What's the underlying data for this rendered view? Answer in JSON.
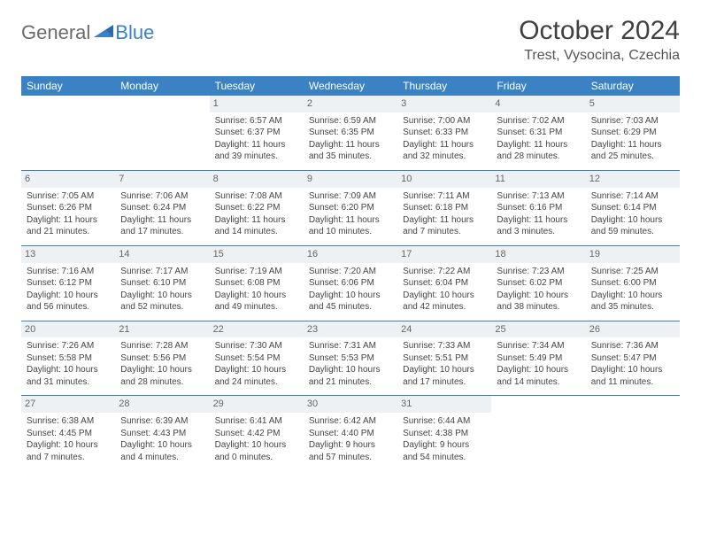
{
  "logo": {
    "part1": "General",
    "part2": "Blue"
  },
  "title": "October 2024",
  "location": "Trest, Vysocina, Czechia",
  "colors": {
    "header_bg": "#3b82c4",
    "header_text": "#ffffff",
    "daynum_bg": "#eef1f3",
    "daynum_text": "#666666",
    "body_text": "#444444",
    "rule": "#3b82c4",
    "logo_gray": "#6b6b6b",
    "logo_blue": "#3b82c4"
  },
  "typography": {
    "title_fontsize": 30,
    "location_fontsize": 16,
    "header_fontsize": 12,
    "cell_fontsize": 10
  },
  "day_names": [
    "Sunday",
    "Monday",
    "Tuesday",
    "Wednesday",
    "Thursday",
    "Friday",
    "Saturday"
  ],
  "weeks": [
    [
      null,
      null,
      {
        "n": "1",
        "sunrise": "6:57 AM",
        "sunset": "6:37 PM",
        "daylight": "11 hours and 39 minutes."
      },
      {
        "n": "2",
        "sunrise": "6:59 AM",
        "sunset": "6:35 PM",
        "daylight": "11 hours and 35 minutes."
      },
      {
        "n": "3",
        "sunrise": "7:00 AM",
        "sunset": "6:33 PM",
        "daylight": "11 hours and 32 minutes."
      },
      {
        "n": "4",
        "sunrise": "7:02 AM",
        "sunset": "6:31 PM",
        "daylight": "11 hours and 28 minutes."
      },
      {
        "n": "5",
        "sunrise": "7:03 AM",
        "sunset": "6:29 PM",
        "daylight": "11 hours and 25 minutes."
      }
    ],
    [
      {
        "n": "6",
        "sunrise": "7:05 AM",
        "sunset": "6:26 PM",
        "daylight": "11 hours and 21 minutes."
      },
      {
        "n": "7",
        "sunrise": "7:06 AM",
        "sunset": "6:24 PM",
        "daylight": "11 hours and 17 minutes."
      },
      {
        "n": "8",
        "sunrise": "7:08 AM",
        "sunset": "6:22 PM",
        "daylight": "11 hours and 14 minutes."
      },
      {
        "n": "9",
        "sunrise": "7:09 AM",
        "sunset": "6:20 PM",
        "daylight": "11 hours and 10 minutes."
      },
      {
        "n": "10",
        "sunrise": "7:11 AM",
        "sunset": "6:18 PM",
        "daylight": "11 hours and 7 minutes."
      },
      {
        "n": "11",
        "sunrise": "7:13 AM",
        "sunset": "6:16 PM",
        "daylight": "11 hours and 3 minutes."
      },
      {
        "n": "12",
        "sunrise": "7:14 AM",
        "sunset": "6:14 PM",
        "daylight": "10 hours and 59 minutes."
      }
    ],
    [
      {
        "n": "13",
        "sunrise": "7:16 AM",
        "sunset": "6:12 PM",
        "daylight": "10 hours and 56 minutes."
      },
      {
        "n": "14",
        "sunrise": "7:17 AM",
        "sunset": "6:10 PM",
        "daylight": "10 hours and 52 minutes."
      },
      {
        "n": "15",
        "sunrise": "7:19 AM",
        "sunset": "6:08 PM",
        "daylight": "10 hours and 49 minutes."
      },
      {
        "n": "16",
        "sunrise": "7:20 AM",
        "sunset": "6:06 PM",
        "daylight": "10 hours and 45 minutes."
      },
      {
        "n": "17",
        "sunrise": "7:22 AM",
        "sunset": "6:04 PM",
        "daylight": "10 hours and 42 minutes."
      },
      {
        "n": "18",
        "sunrise": "7:23 AM",
        "sunset": "6:02 PM",
        "daylight": "10 hours and 38 minutes."
      },
      {
        "n": "19",
        "sunrise": "7:25 AM",
        "sunset": "6:00 PM",
        "daylight": "10 hours and 35 minutes."
      }
    ],
    [
      {
        "n": "20",
        "sunrise": "7:26 AM",
        "sunset": "5:58 PM",
        "daylight": "10 hours and 31 minutes."
      },
      {
        "n": "21",
        "sunrise": "7:28 AM",
        "sunset": "5:56 PM",
        "daylight": "10 hours and 28 minutes."
      },
      {
        "n": "22",
        "sunrise": "7:30 AM",
        "sunset": "5:54 PM",
        "daylight": "10 hours and 24 minutes."
      },
      {
        "n": "23",
        "sunrise": "7:31 AM",
        "sunset": "5:53 PM",
        "daylight": "10 hours and 21 minutes."
      },
      {
        "n": "24",
        "sunrise": "7:33 AM",
        "sunset": "5:51 PM",
        "daylight": "10 hours and 17 minutes."
      },
      {
        "n": "25",
        "sunrise": "7:34 AM",
        "sunset": "5:49 PM",
        "daylight": "10 hours and 14 minutes."
      },
      {
        "n": "26",
        "sunrise": "7:36 AM",
        "sunset": "5:47 PM",
        "daylight": "10 hours and 11 minutes."
      }
    ],
    [
      {
        "n": "27",
        "sunrise": "6:38 AM",
        "sunset": "4:45 PM",
        "daylight": "10 hours and 7 minutes."
      },
      {
        "n": "28",
        "sunrise": "6:39 AM",
        "sunset": "4:43 PM",
        "daylight": "10 hours and 4 minutes."
      },
      {
        "n": "29",
        "sunrise": "6:41 AM",
        "sunset": "4:42 PM",
        "daylight": "10 hours and 0 minutes."
      },
      {
        "n": "30",
        "sunrise": "6:42 AM",
        "sunset": "4:40 PM",
        "daylight": "9 hours and 57 minutes."
      },
      {
        "n": "31",
        "sunrise": "6:44 AM",
        "sunset": "4:38 PM",
        "daylight": "9 hours and 54 minutes."
      },
      null,
      null
    ]
  ]
}
